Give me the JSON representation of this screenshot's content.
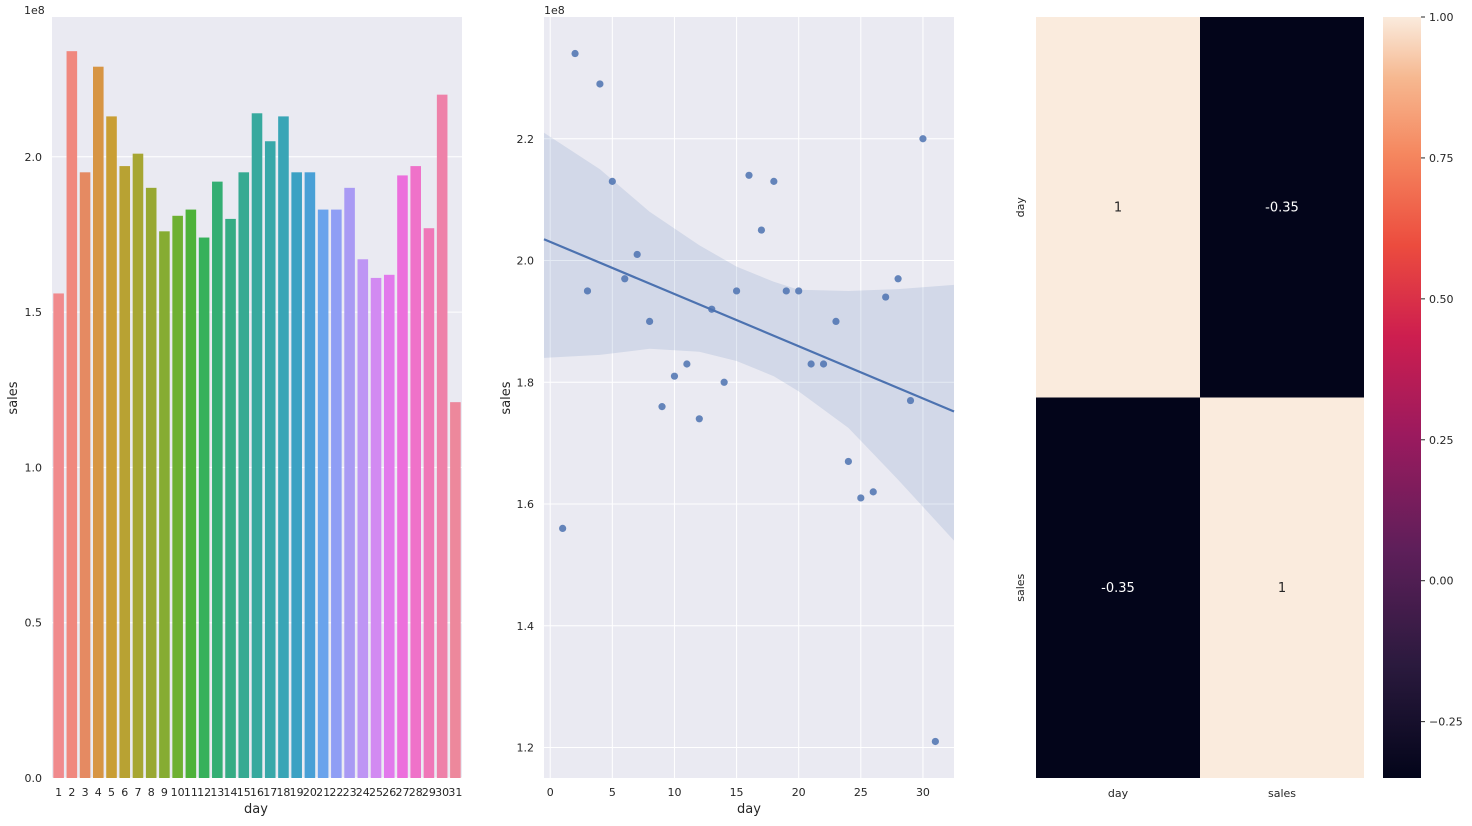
{
  "chart_data": [
    {
      "type": "bar",
      "xlabel": "day",
      "ylabel": "sales",
      "offset_label": "1e8",
      "ylim": [
        0,
        2.45
      ],
      "yticks": [
        0.0,
        0.5,
        1.0,
        1.5,
        2.0
      ],
      "ytick_labels": [
        "0.0",
        "0.5",
        "1.0",
        "1.5",
        "2.0"
      ],
      "categories": [
        "1",
        "2",
        "3",
        "4",
        "5",
        "6",
        "7",
        "8",
        "9",
        "10",
        "11",
        "12",
        "13",
        "14",
        "15",
        "16",
        "17",
        "18",
        "19",
        "20",
        "21",
        "22",
        "23",
        "24",
        "25",
        "26",
        "27",
        "28",
        "29",
        "30",
        "31"
      ],
      "values": [
        1.56,
        2.34,
        1.95,
        2.29,
        2.13,
        1.97,
        2.01,
        1.9,
        1.76,
        1.81,
        1.83,
        1.74,
        1.92,
        1.8,
        1.95,
        2.14,
        2.05,
        2.13,
        1.95,
        1.95,
        1.83,
        1.83,
        1.9,
        1.67,
        1.61,
        1.62,
        1.94,
        1.97,
        1.77,
        2.2,
        1.21
      ],
      "colors": [
        "#f08a8d",
        "#f0887e",
        "#e58a62",
        "#d79544",
        "#c99e34",
        "#b8a233",
        "#a7a633",
        "#98a832",
        "#86ac32",
        "#6eb032",
        "#4db23a",
        "#36b15b",
        "#34ae73",
        "#35ac84",
        "#36aa92",
        "#37a99e",
        "#38a8a9",
        "#39a5b6",
        "#3ca1c3",
        "#49a0d6",
        "#6aa3ec",
        "#8f9ef5",
        "#a99af4",
        "#be95f4",
        "#d28af2",
        "#e279ec",
        "#ec6fdc",
        "#ef72c9",
        "#f077b8",
        "#ee81a9",
        "#ed889c"
      ]
    },
    {
      "type": "scatter",
      "xlabel": "day",
      "ylabel": "sales",
      "offset_label": "1e8",
      "xlim": [
        -0.5,
        32.5
      ],
      "ylim": [
        1.15,
        2.4
      ],
      "xticks": [
        0,
        5,
        10,
        15,
        20,
        25,
        30
      ],
      "xtick_labels": [
        "0",
        "5",
        "10",
        "15",
        "20",
        "25",
        "30"
      ],
      "yticks": [
        1.2,
        1.4,
        1.6,
        1.8,
        2.0,
        2.2
      ],
      "ytick_labels": [
        "1.2",
        "1.4",
        "1.6",
        "1.8",
        "2.0",
        "2.2"
      ],
      "x": [
        1,
        2,
        3,
        4,
        5,
        6,
        7,
        8,
        9,
        10,
        11,
        12,
        13,
        14,
        15,
        16,
        17,
        18,
        19,
        20,
        21,
        22,
        23,
        24,
        25,
        26,
        27,
        28,
        29,
        30,
        31
      ],
      "y": [
        1.56,
        2.34,
        1.95,
        2.29,
        2.13,
        1.97,
        2.01,
        1.9,
        1.76,
        1.81,
        1.83,
        1.74,
        1.92,
        1.8,
        1.95,
        2.14,
        2.05,
        2.13,
        1.95,
        1.95,
        1.83,
        1.83,
        1.9,
        1.67,
        1.61,
        1.62,
        1.94,
        1.97,
        1.77,
        2.2,
        1.21
      ],
      "regression": {
        "x0": -0.5,
        "y0": 2.035,
        "x1": 32.5,
        "y1": 1.752
      },
      "ci_upper": [
        [
          -0.5,
          2.21
        ],
        [
          4,
          2.15
        ],
        [
          8,
          2.08
        ],
        [
          12,
          2.025
        ],
        [
          15,
          1.99
        ],
        [
          18,
          1.965
        ],
        [
          20,
          1.952
        ],
        [
          24,
          1.95
        ],
        [
          28,
          1.953
        ],
        [
          32.5,
          1.96
        ]
      ],
      "ci_lower": [
        [
          -0.5,
          1.84
        ],
        [
          4,
          1.845
        ],
        [
          8,
          1.855
        ],
        [
          12,
          1.85
        ],
        [
          15,
          1.835
        ],
        [
          18,
          1.81
        ],
        [
          20,
          1.785
        ],
        [
          24,
          1.725
        ],
        [
          28,
          1.64
        ],
        [
          32.5,
          1.54
        ]
      ],
      "point_color": "#4c72b0",
      "line_color": "#4c72b0"
    },
    {
      "type": "heatmap",
      "rows": [
        "day",
        "sales"
      ],
      "cols": [
        "day",
        "sales"
      ],
      "values": [
        [
          1,
          -0.35
        ],
        [
          -0.35,
          1
        ]
      ],
      "annotations": [
        [
          "1",
          "-0.35"
        ],
        [
          "-0.35",
          "1"
        ]
      ],
      "colorbar": {
        "vmin": -0.35,
        "vmax": 1.0,
        "ticks": [
          -0.25,
          0.0,
          0.25,
          0.5,
          0.75,
          1.0
        ],
        "tick_labels": [
          "−0.25",
          "0.00",
          "0.25",
          "0.50",
          "0.75",
          "1.00"
        ],
        "colormap": "rocket"
      }
    }
  ]
}
